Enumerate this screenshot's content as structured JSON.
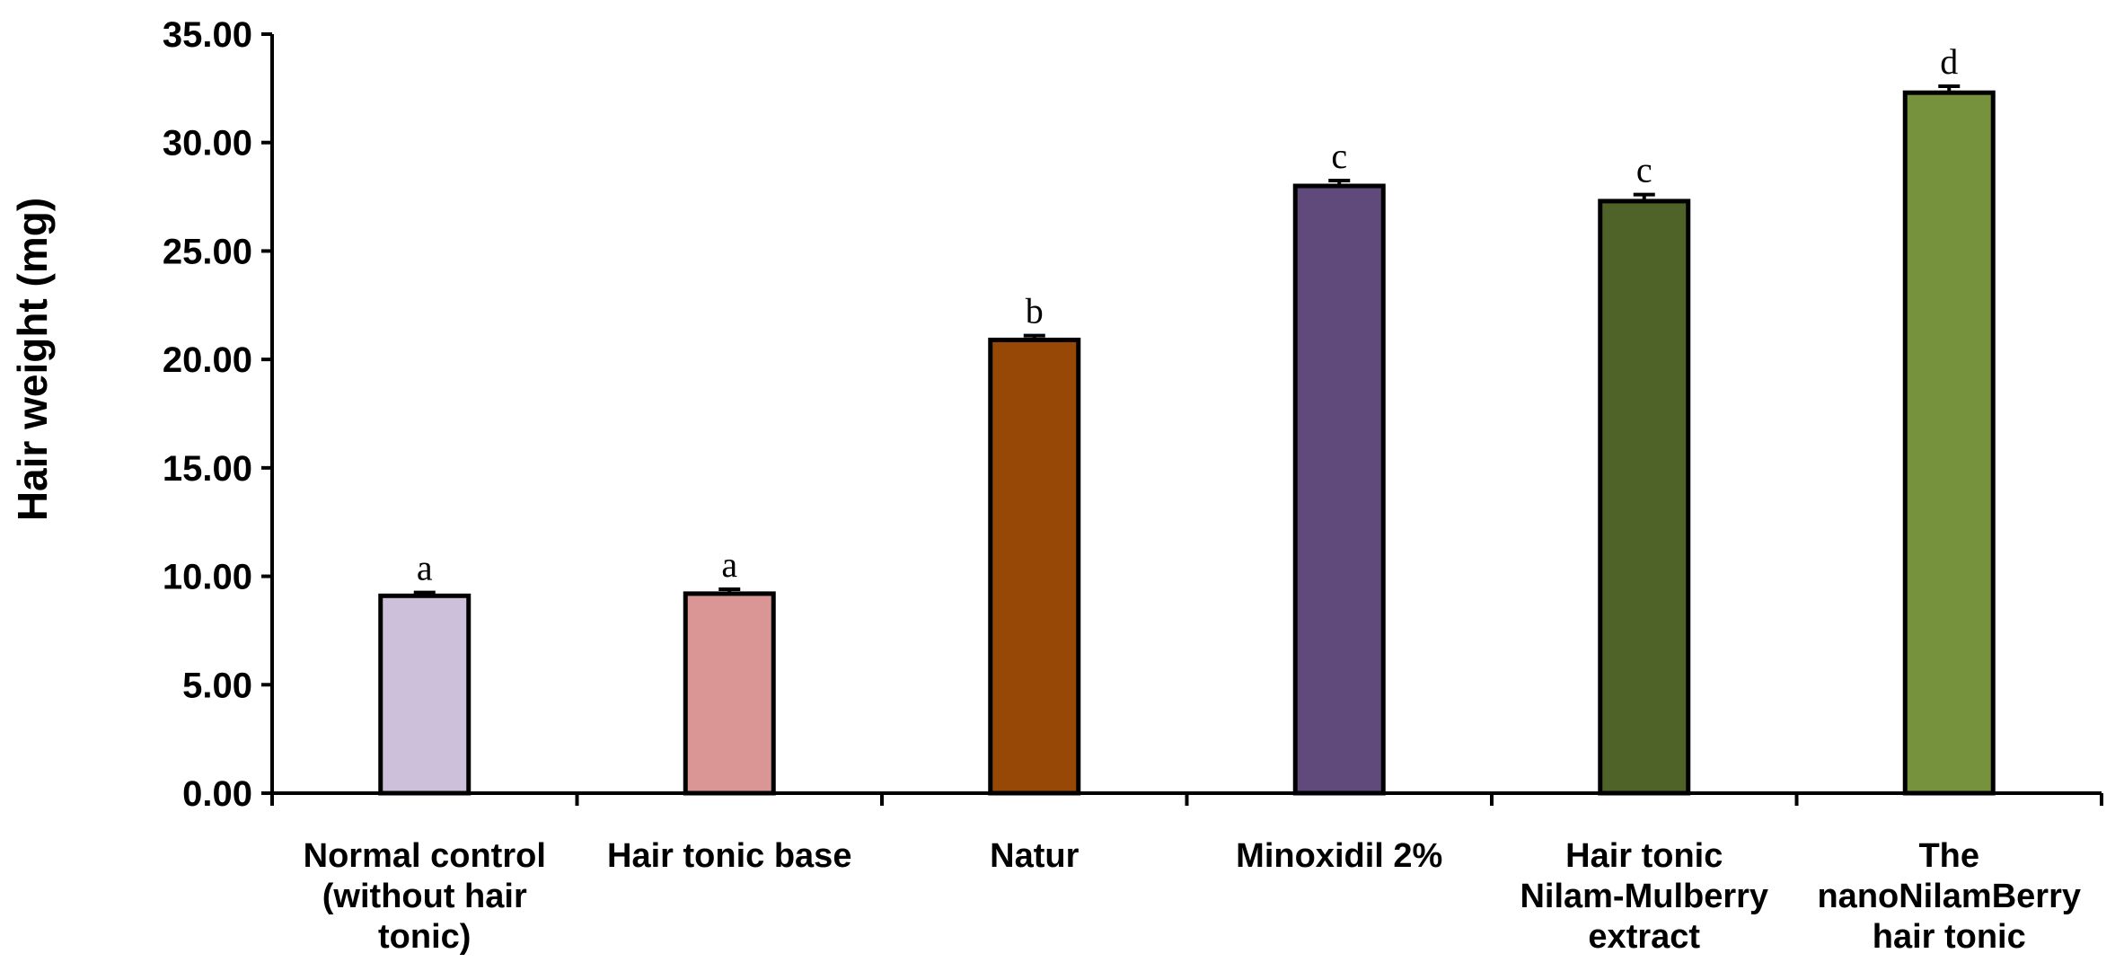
{
  "chart_data": {
    "type": "bar",
    "title": "",
    "xlabel": "",
    "ylabel": "Hair weight (mg)",
    "ylim": [
      0,
      35
    ],
    "ytick_step": 5,
    "ytick_labels": [
      "0.00",
      "5.00",
      "10.00",
      "15.00",
      "20.00",
      "25.00",
      "30.00",
      "35.00"
    ],
    "grid": false,
    "legend": "none",
    "categories": [
      [
        "Normal control",
        "(without hair",
        "tonic)"
      ],
      [
        "Hair tonic base"
      ],
      [
        "Natur"
      ],
      [
        "Minoxidil 2%"
      ],
      [
        "Hair tonic",
        "Nilam-Mulberry",
        "extract"
      ],
      [
        "The",
        "nanoNilamBerry",
        "hair tonic"
      ]
    ],
    "values": [
      9.1,
      9.2,
      20.9,
      28.0,
      27.3,
      32.3
    ],
    "errors": [
      0.15,
      0.2,
      0.2,
      0.25,
      0.3,
      0.3
    ],
    "significance_labels": [
      "a",
      "a",
      "b",
      "c",
      "c",
      "d"
    ],
    "colors": [
      "#ccc0da",
      "#da9694",
      "#974706",
      "#604a7b",
      "#4f6228",
      "#76923c"
    ]
  }
}
